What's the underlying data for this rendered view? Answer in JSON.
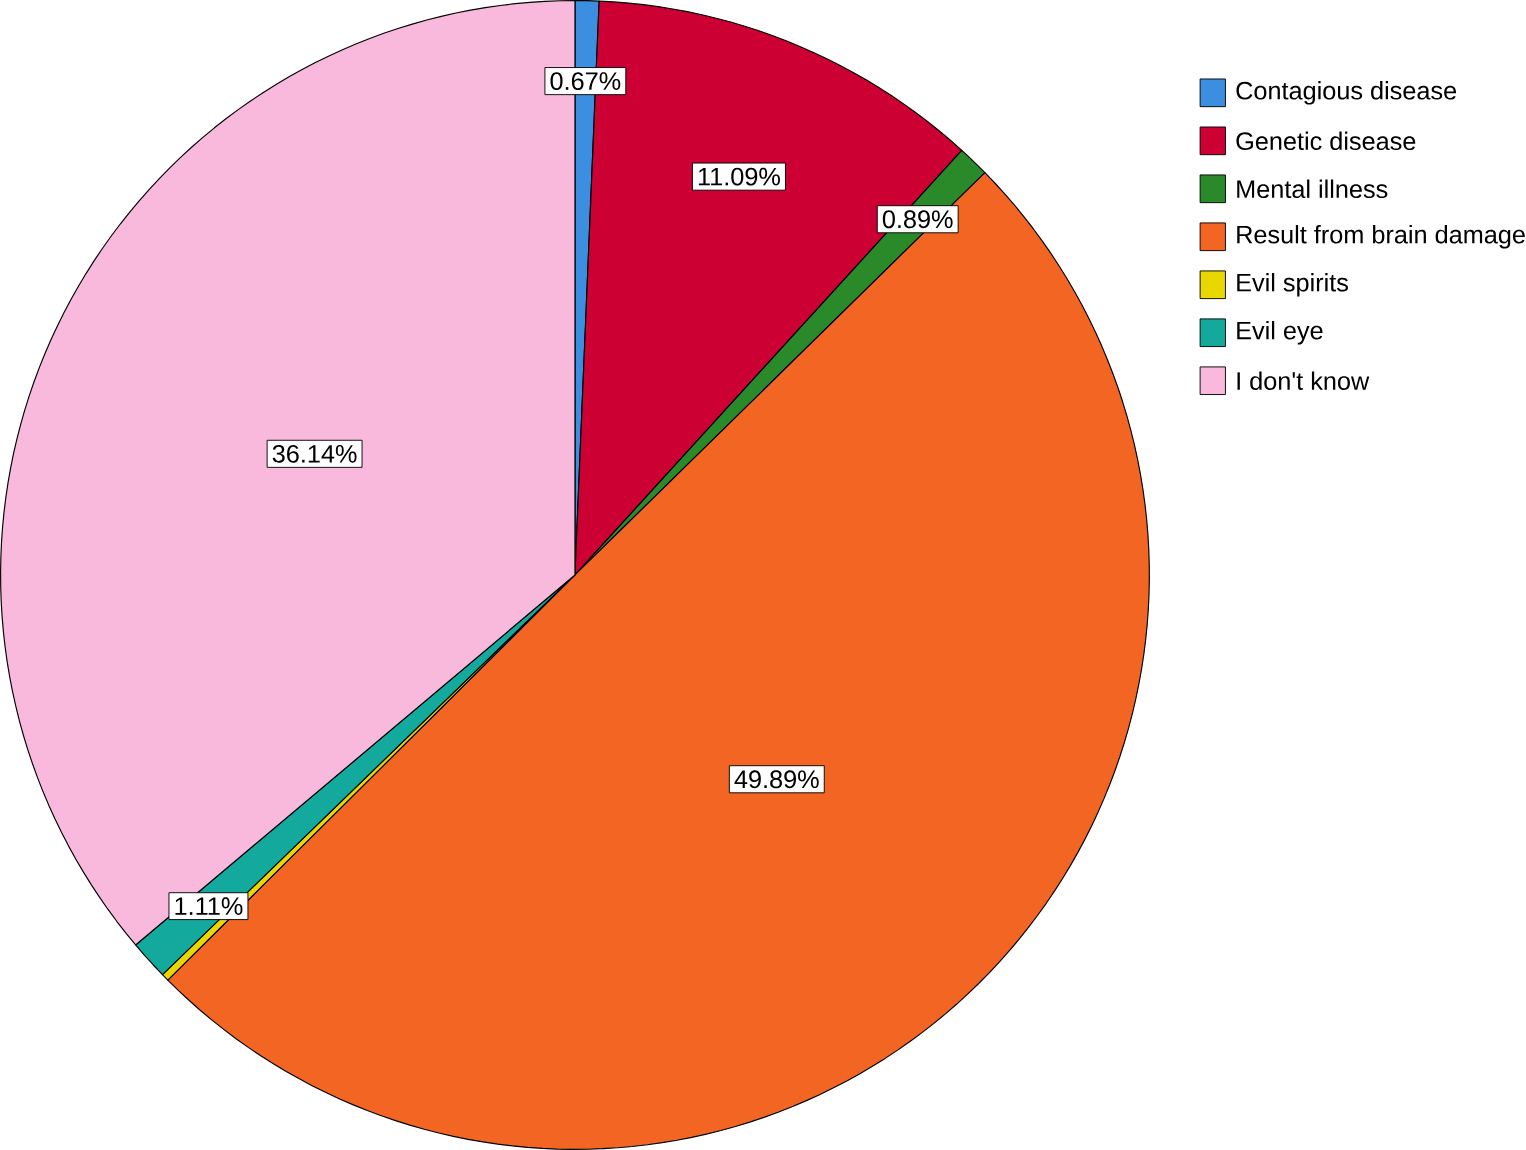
{
  "chart_data": {
    "type": "pie",
    "categories": [
      "Contagious disease",
      "Genetic disease",
      "Mental illness",
      "Result from brain damage",
      "Evil spirits",
      "Evil eye",
      "I don't know"
    ],
    "values": [
      0.67,
      11.09,
      0.89,
      49.89,
      0.21,
      1.11,
      36.14
    ],
    "value_labels": [
      "0.67%",
      "11.09%",
      "0.89%",
      "49.89%",
      null,
      "1.11%",
      "36.14%"
    ],
    "colors": [
      "#3b8ee0",
      "#cc0033",
      "#2a8a2a",
      "#f26522",
      "#e8d800",
      "#14a99d",
      "#f9b9dc"
    ],
    "legend": "top right"
  }
}
